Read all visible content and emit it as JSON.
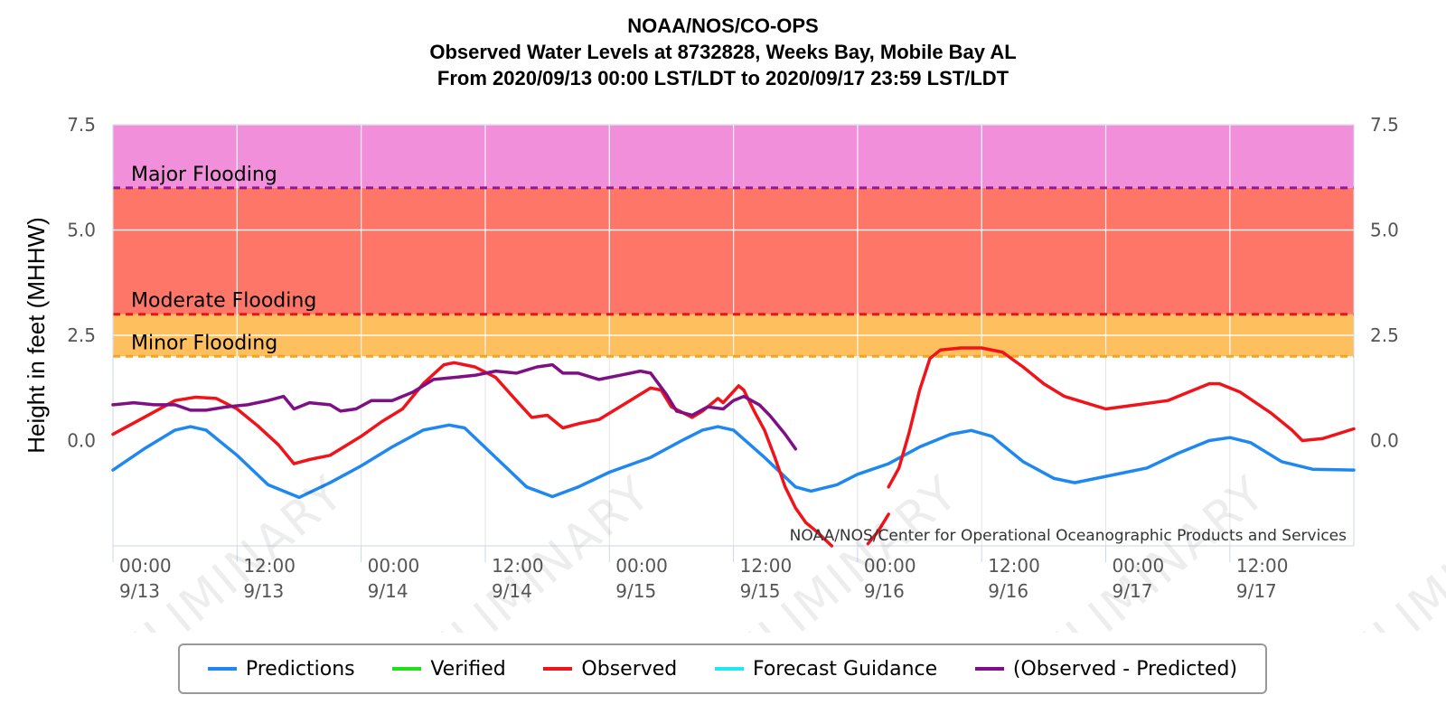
{
  "chart_data": {
    "type": "line",
    "title": [
      "NOAA/NOS/CO-OPS",
      "Observed Water Levels at 8732828, Weeks Bay, Mobile Bay AL",
      "From 2020/09/13 00:00 LST/LDT to 2020/09/17 23:59 LST/LDT"
    ],
    "ylabel": "Height in feet (MHHW)",
    "ylim": [
      -2.5,
      7.5
    ],
    "xlim": [
      "2020-09-13 00:00",
      "2020-09-17 23:59"
    ],
    "y_ticks": [
      "7.5",
      "5.0",
      "2.5",
      "0.0"
    ],
    "y_tick_values": [
      7.5,
      5.0,
      2.5,
      0.0
    ],
    "x_ticks": [
      {
        "time": "2020-09-13 00:00",
        "label": [
          "00:00",
          "9/13"
        ]
      },
      {
        "time": "2020-09-13 12:00",
        "label": [
          "12:00",
          "9/13"
        ]
      },
      {
        "time": "2020-09-14 00:00",
        "label": [
          "00:00",
          "9/14"
        ]
      },
      {
        "time": "2020-09-14 12:00",
        "label": [
          "12:00",
          "9/14"
        ]
      },
      {
        "time": "2020-09-15 00:00",
        "label": [
          "00:00",
          "9/15"
        ]
      },
      {
        "time": "2020-09-15 12:00",
        "label": [
          "12:00",
          "9/15"
        ]
      },
      {
        "time": "2020-09-16 00:00",
        "label": [
          "00:00",
          "9/16"
        ]
      },
      {
        "time": "2020-09-16 12:00",
        "label": [
          "12:00",
          "9/16"
        ]
      },
      {
        "time": "2020-09-17 00:00",
        "label": [
          "00:00",
          "9/17"
        ]
      },
      {
        "time": "2020-09-17 12:00",
        "label": [
          "12:00",
          "9/17"
        ]
      }
    ],
    "grid": true,
    "flood_zones": [
      {
        "label": "Minor Flooding",
        "from": 2.0,
        "to": 3.0,
        "fill": "#fec05e",
        "line": "#f6a31d"
      },
      {
        "label": "Moderate Flooding",
        "from": 3.0,
        "to": 6.0,
        "fill": "#fe7667",
        "line": "#e4161b"
      },
      {
        "label": "Major Flooding",
        "from": 6.0,
        "to": 7.5,
        "fill": "#f18fdb",
        "line": "#8e1a8f"
      }
    ],
    "credit": "NOAA/NOS/Center for Operational Oceanographic Products and Services",
    "watermark": "PRELIMINARY",
    "series": [
      {
        "name": "Predictions",
        "color": "#1e88f0",
        "points": [
          [
            "2020-09-13 00:00",
            -0.7
          ],
          [
            "2020-09-13 03:00",
            -0.2
          ],
          [
            "2020-09-13 06:00",
            0.25
          ],
          [
            "2020-09-13 07:30",
            0.33
          ],
          [
            "2020-09-13 09:00",
            0.25
          ],
          [
            "2020-09-13 12:00",
            -0.35
          ],
          [
            "2020-09-13 15:00",
            -1.05
          ],
          [
            "2020-09-13 18:00",
            -1.35
          ],
          [
            "2020-09-13 21:00",
            -1.0
          ],
          [
            "2020-09-14 00:00",
            -0.6
          ],
          [
            "2020-09-14 03:00",
            -0.15
          ],
          [
            "2020-09-14 06:00",
            0.25
          ],
          [
            "2020-09-14 08:30",
            0.37
          ],
          [
            "2020-09-14 10:00",
            0.3
          ],
          [
            "2020-09-14 13:00",
            -0.4
          ],
          [
            "2020-09-14 16:00",
            -1.1
          ],
          [
            "2020-09-14 18:30",
            -1.33
          ],
          [
            "2020-09-14 21:00",
            -1.1
          ],
          [
            "2020-09-15 00:00",
            -0.75
          ],
          [
            "2020-09-15 04:00",
            -0.4
          ],
          [
            "2020-09-15 07:00",
            0.0
          ],
          [
            "2020-09-15 09:00",
            0.25
          ],
          [
            "2020-09-15 10:30",
            0.33
          ],
          [
            "2020-09-15 12:00",
            0.25
          ],
          [
            "2020-09-15 15:00",
            -0.4
          ],
          [
            "2020-09-15 18:00",
            -1.1
          ],
          [
            "2020-09-15 19:30",
            -1.2
          ],
          [
            "2020-09-15 22:00",
            -1.05
          ],
          [
            "2020-09-16 00:00",
            -0.8
          ],
          [
            "2020-09-16 03:00",
            -0.55
          ],
          [
            "2020-09-16 06:00",
            -0.15
          ],
          [
            "2020-09-16 09:00",
            0.15
          ],
          [
            "2020-09-16 11:00",
            0.24
          ],
          [
            "2020-09-16 13:00",
            0.1
          ],
          [
            "2020-09-16 16:00",
            -0.5
          ],
          [
            "2020-09-16 19:00",
            -0.9
          ],
          [
            "2020-09-16 21:00",
            -1.0
          ],
          [
            "2020-09-17 00:00",
            -0.85
          ],
          [
            "2020-09-17 04:00",
            -0.65
          ],
          [
            "2020-09-17 07:00",
            -0.3
          ],
          [
            "2020-09-17 10:00",
            0.0
          ],
          [
            "2020-09-17 12:00",
            0.07
          ],
          [
            "2020-09-17 14:00",
            -0.05
          ],
          [
            "2020-09-17 17:00",
            -0.5
          ],
          [
            "2020-09-17 20:00",
            -0.68
          ],
          [
            "2020-09-17 23:59",
            -0.7
          ]
        ]
      },
      {
        "name": "Verified",
        "color": "#22e01a",
        "points": []
      },
      {
        "name": "Observed",
        "color": "#f0141a",
        "points": [
          [
            "2020-09-13 00:00",
            0.15
          ],
          [
            "2020-09-13 03:00",
            0.55
          ],
          [
            "2020-09-13 06:00",
            0.95
          ],
          [
            "2020-09-13 08:00",
            1.03
          ],
          [
            "2020-09-13 10:00",
            1.0
          ],
          [
            "2020-09-13 12:00",
            0.75
          ],
          [
            "2020-09-13 14:00",
            0.35
          ],
          [
            "2020-09-13 16:00",
            -0.1
          ],
          [
            "2020-09-13 17:30",
            -0.55
          ],
          [
            "2020-09-13 19:00",
            -0.45
          ],
          [
            "2020-09-13 21:00",
            -0.35
          ],
          [
            "2020-09-13 23:00",
            -0.05
          ],
          [
            "2020-09-14 00:00",
            0.1
          ],
          [
            "2020-09-14 02:00",
            0.45
          ],
          [
            "2020-09-14 04:00",
            0.75
          ],
          [
            "2020-09-14 06:00",
            1.35
          ],
          [
            "2020-09-14 08:00",
            1.8
          ],
          [
            "2020-09-14 09:00",
            1.85
          ],
          [
            "2020-09-14 11:00",
            1.75
          ],
          [
            "2020-09-14 13:00",
            1.5
          ],
          [
            "2020-09-14 15:00",
            0.95
          ],
          [
            "2020-09-14 16:30",
            0.55
          ],
          [
            "2020-09-14 18:00",
            0.6
          ],
          [
            "2020-09-14 19:30",
            0.3
          ],
          [
            "2020-09-14 21:00",
            0.4
          ],
          [
            "2020-09-14 23:00",
            0.5
          ],
          [
            "2020-09-15 00:00",
            0.65
          ],
          [
            "2020-09-15 02:00",
            0.95
          ],
          [
            "2020-09-15 04:00",
            1.25
          ],
          [
            "2020-09-15 05:00",
            1.2
          ],
          [
            "2020-09-15 06:00",
            0.8
          ],
          [
            "2020-09-15 08:00",
            0.55
          ],
          [
            "2020-09-15 09:00",
            0.7
          ],
          [
            "2020-09-15 10:30",
            1.0
          ],
          [
            "2020-09-15 11:00",
            0.9
          ],
          [
            "2020-09-15 12:30",
            1.3
          ],
          [
            "2020-09-15 13:00",
            1.2
          ],
          [
            "2020-09-15 14:00",
            0.7
          ],
          [
            "2020-09-15 15:00",
            0.25
          ],
          [
            "2020-09-15 16:00",
            -0.4
          ],
          [
            "2020-09-15 17:00",
            -1.1
          ],
          [
            "2020-09-15 18:00",
            -1.6
          ],
          [
            "2020-09-15 19:00",
            -1.95
          ],
          [
            "2020-09-15 20:00",
            -2.15
          ],
          [
            "2020-09-15 21:30",
            -2.5
          ]
        ]
      },
      {
        "name": "Observed",
        "color": "#f0141a",
        "points": [
          [
            "2020-09-16 01:00",
            -2.45
          ],
          [
            "2020-09-16 02:00",
            -2.15
          ],
          [
            "2020-09-16 03:00",
            -1.75
          ]
        ]
      },
      {
        "name": "Observed",
        "color": "#f0141a",
        "points": [
          [
            "2020-09-16 03:00",
            -1.1
          ],
          [
            "2020-09-16 04:00",
            -0.65
          ],
          [
            "2020-09-16 05:00",
            0.2
          ],
          [
            "2020-09-16 06:00",
            1.2
          ],
          [
            "2020-09-16 07:00",
            1.95
          ],
          [
            "2020-09-16 08:00",
            2.15
          ],
          [
            "2020-09-16 10:00",
            2.2
          ],
          [
            "2020-09-16 12:00",
            2.2
          ],
          [
            "2020-09-16 14:00",
            2.1
          ],
          [
            "2020-09-16 16:00",
            1.75
          ],
          [
            "2020-09-16 18:00",
            1.35
          ],
          [
            "2020-09-16 20:00",
            1.05
          ],
          [
            "2020-09-16 22:00",
            0.9
          ],
          [
            "2020-09-17 00:00",
            0.75
          ],
          [
            "2020-09-17 03:00",
            0.85
          ],
          [
            "2020-09-17 06:00",
            0.95
          ],
          [
            "2020-09-17 08:00",
            1.15
          ],
          [
            "2020-09-17 10:00",
            1.35
          ],
          [
            "2020-09-17 11:00",
            1.35
          ],
          [
            "2020-09-17 13:00",
            1.15
          ],
          [
            "2020-09-17 16:00",
            0.65
          ],
          [
            "2020-09-17 18:00",
            0.25
          ],
          [
            "2020-09-17 19:00",
            0.0
          ],
          [
            "2020-09-17 21:00",
            0.05
          ],
          [
            "2020-09-17 23:59",
            0.28
          ]
        ]
      },
      {
        "name": "Forecast Guidance",
        "color": "#22e6f0",
        "points": []
      },
      {
        "name": "(Observed - Predicted)",
        "color": "#7e0f85",
        "points": [
          [
            "2020-09-13 00:00",
            0.85
          ],
          [
            "2020-09-13 02:00",
            0.9
          ],
          [
            "2020-09-13 04:00",
            0.85
          ],
          [
            "2020-09-13 06:00",
            0.85
          ],
          [
            "2020-09-13 07:30",
            0.72
          ],
          [
            "2020-09-13 09:00",
            0.72
          ],
          [
            "2020-09-13 11:00",
            0.8
          ],
          [
            "2020-09-13 13:00",
            0.85
          ],
          [
            "2020-09-13 15:00",
            0.95
          ],
          [
            "2020-09-13 16:30",
            1.05
          ],
          [
            "2020-09-13 17:30",
            0.75
          ],
          [
            "2020-09-13 19:00",
            0.9
          ],
          [
            "2020-09-13 21:00",
            0.85
          ],
          [
            "2020-09-13 22:00",
            0.7
          ],
          [
            "2020-09-13 23:30",
            0.75
          ],
          [
            "2020-09-14 01:00",
            0.95
          ],
          [
            "2020-09-14 03:00",
            0.95
          ],
          [
            "2020-09-14 05:00",
            1.15
          ],
          [
            "2020-09-14 07:00",
            1.45
          ],
          [
            "2020-09-14 09:00",
            1.5
          ],
          [
            "2020-09-14 11:00",
            1.55
          ],
          [
            "2020-09-14 13:00",
            1.65
          ],
          [
            "2020-09-14 15:00",
            1.6
          ],
          [
            "2020-09-14 17:00",
            1.75
          ],
          [
            "2020-09-14 18:30",
            1.8
          ],
          [
            "2020-09-14 19:30",
            1.6
          ],
          [
            "2020-09-14 21:00",
            1.6
          ],
          [
            "2020-09-14 23:00",
            1.45
          ],
          [
            "2020-09-15 01:00",
            1.55
          ],
          [
            "2020-09-15 03:00",
            1.65
          ],
          [
            "2020-09-15 04:00",
            1.6
          ],
          [
            "2020-09-15 05:30",
            1.1
          ],
          [
            "2020-09-15 06:30",
            0.7
          ],
          [
            "2020-09-15 08:00",
            0.6
          ],
          [
            "2020-09-15 09:30",
            0.8
          ],
          [
            "2020-09-15 11:00",
            0.75
          ],
          [
            "2020-09-15 12:00",
            0.95
          ],
          [
            "2020-09-15 13:00",
            1.05
          ],
          [
            "2020-09-15 14:30",
            0.85
          ],
          [
            "2020-09-15 15:30",
            0.6
          ],
          [
            "2020-09-15 16:00",
            0.45
          ],
          [
            "2020-09-15 17:00",
            0.15
          ],
          [
            "2020-09-15 18:00",
            -0.2
          ]
        ]
      }
    ]
  },
  "legend": {
    "items": [
      {
        "label": "Predictions",
        "color": "#1e88f0"
      },
      {
        "label": "Verified",
        "color": "#22e01a"
      },
      {
        "label": "Observed",
        "color": "#f0141a"
      },
      {
        "label": "Forecast Guidance",
        "color": "#22e6f0"
      },
      {
        "label": "(Observed - Predicted)",
        "color": "#7e0f85"
      }
    ]
  }
}
